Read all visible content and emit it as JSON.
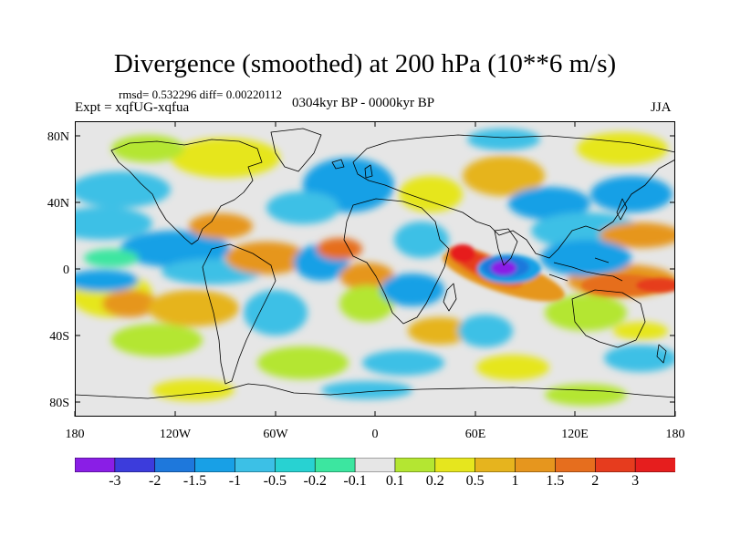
{
  "figure": {
    "title": "Divergence (smoothed) at 200 hPa (10**6 m/s)",
    "stats": "rmsd= 0.532296 diff= 0.00220112",
    "expt": "Expt = xqfUG-xqfua",
    "period": "0304kyr BP - 0000kyr BP",
    "season": "JJA"
  },
  "axes": {
    "lat_labels": [
      "80N",
      "40N",
      "0",
      "40S",
      "80S"
    ],
    "lon_labels": [
      "180",
      "120W",
      "60W",
      "0",
      "60E",
      "120E",
      "180"
    ]
  },
  "colorbar": {
    "labels": [
      "-3",
      "-2",
      "-1.5",
      "-1",
      "-0.5",
      "-0.2",
      "-0.1",
      "0.1",
      "0.2",
      "0.5",
      "1",
      "1.5",
      "2",
      "3"
    ],
    "colors": [
      "#8a1ee6",
      "#3c3cdc",
      "#1e78dc",
      "#18a0e6",
      "#3cc0e6",
      "#28d2d2",
      "#3ce6a0",
      "#e6e6e6",
      "#b4e632",
      "#e6e61e",
      "#e6b41e",
      "#e6961e",
      "#e66e1e",
      "#e63c1e",
      "#e61e1e"
    ],
    "neutral_color": "#e6e6e6"
  }
}
